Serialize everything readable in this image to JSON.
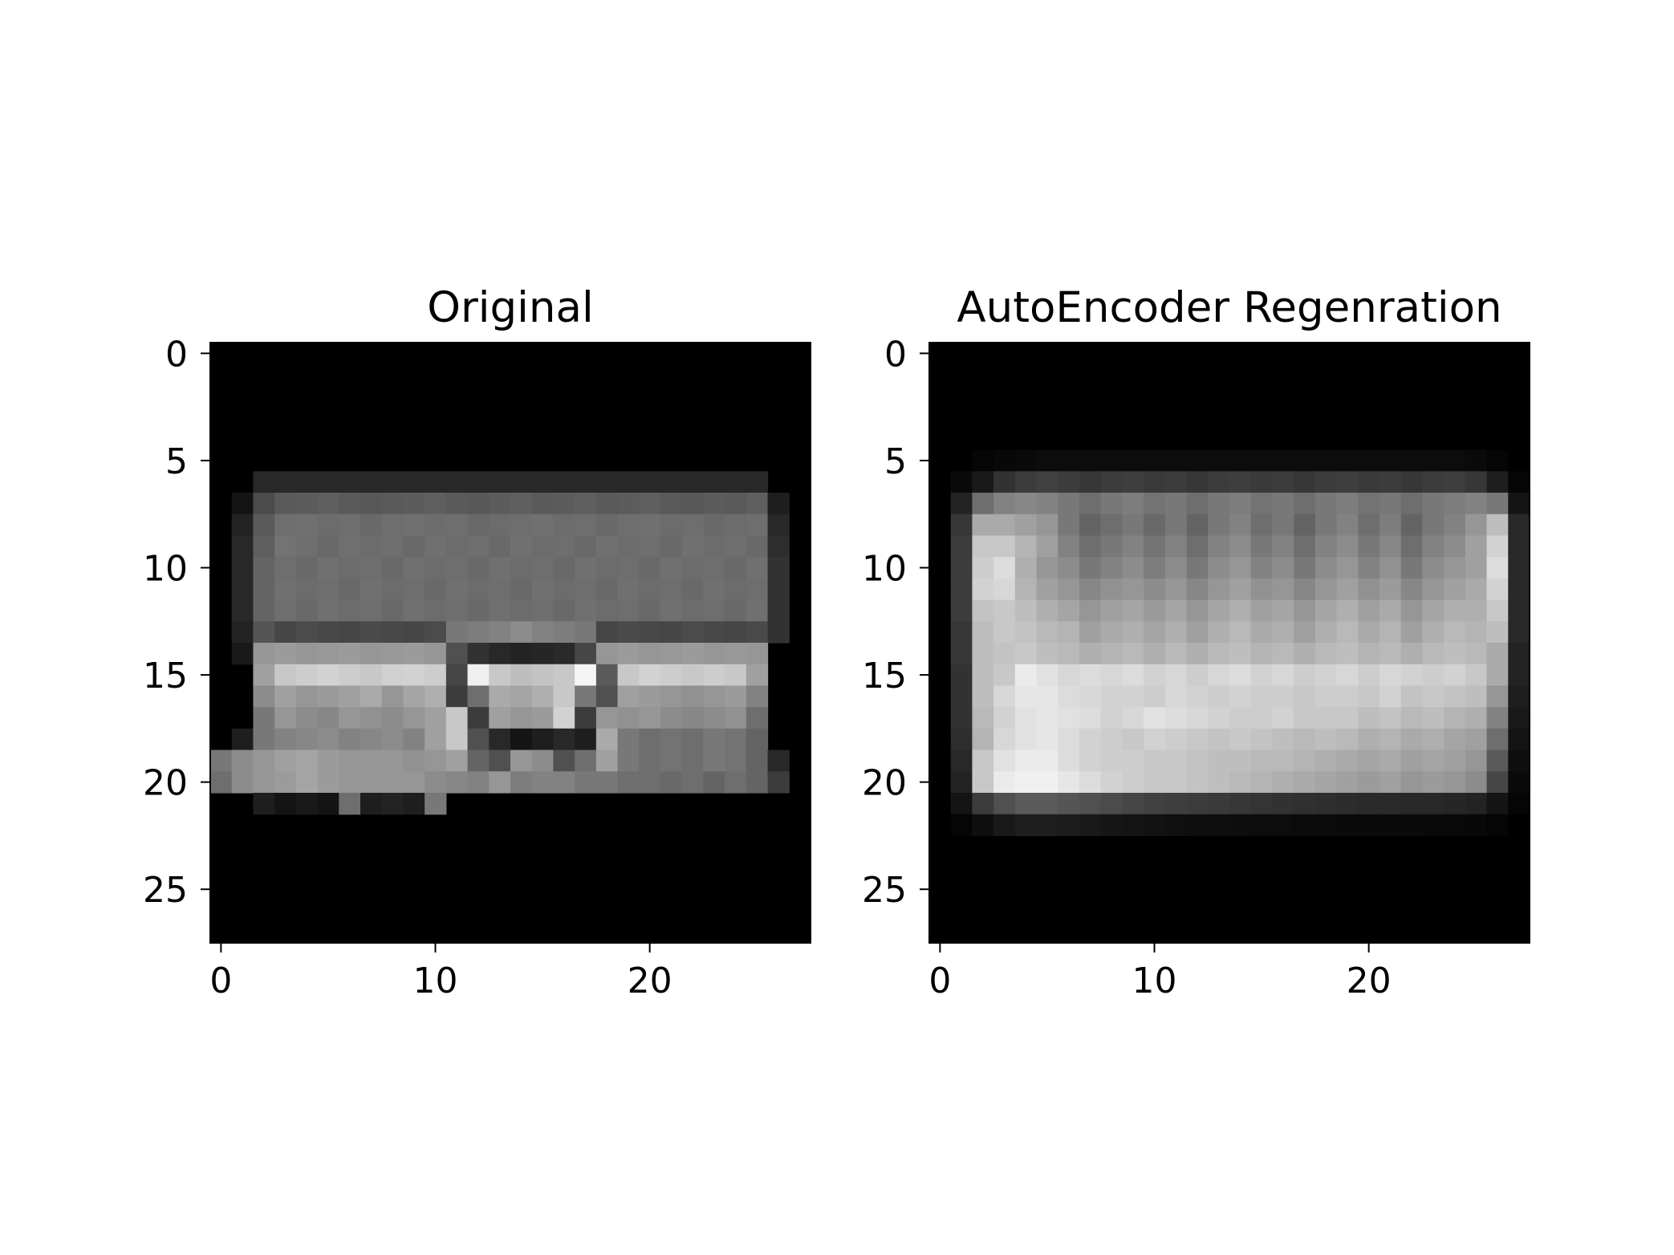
{
  "chart_data": [
    {
      "type": "heatmap",
      "title": "Original",
      "xlabel": "",
      "ylabel": "",
      "colormap": "gray",
      "xlim": [
        -0.5,
        27.5
      ],
      "ylim": [
        27.5,
        -0.5
      ],
      "xticks": [
        0,
        10,
        20
      ],
      "yticks": [
        0,
        5,
        10,
        15,
        20,
        25
      ],
      "xtick_labels": [
        "0",
        "10",
        "20"
      ],
      "ytick_labels": [
        "0",
        "5",
        "10",
        "15",
        "20",
        "25"
      ],
      "row_start": 6,
      "rows": [
        [
          0,
          0,
          40,
          40,
          40,
          40,
          40,
          40,
          40,
          40,
          40,
          40,
          40,
          40,
          40,
          40,
          40,
          40,
          40,
          40,
          40,
          40,
          40,
          40,
          40,
          40,
          0,
          0
        ],
        [
          0,
          20,
          75,
          90,
          92,
          95,
          90,
          88,
          90,
          92,
          95,
          90,
          88,
          92,
          95,
          90,
          92,
          95,
          90,
          92,
          95,
          90,
          88,
          92,
          90,
          95,
          30,
          0
        ],
        [
          0,
          35,
          90,
          110,
          112,
          108,
          110,
          105,
          110,
          112,
          108,
          110,
          105,
          108,
          110,
          112,
          108,
          110,
          105,
          110,
          112,
          108,
          110,
          105,
          108,
          110,
          40,
          0
        ],
        [
          0,
          40,
          95,
          115,
          110,
          105,
          112,
          108,
          110,
          105,
          112,
          108,
          110,
          105,
          112,
          108,
          110,
          105,
          112,
          108,
          110,
          105,
          112,
          108,
          110,
          105,
          45,
          0
        ],
        [
          0,
          40,
          100,
          110,
          105,
          112,
          108,
          110,
          105,
          112,
          108,
          110,
          105,
          112,
          108,
          110,
          105,
          112,
          108,
          110,
          105,
          112,
          108,
          110,
          105,
          112,
          50,
          0
        ],
        [
          0,
          40,
          100,
          112,
          108,
          110,
          105,
          112,
          108,
          110,
          105,
          112,
          108,
          110,
          105,
          112,
          108,
          110,
          105,
          112,
          108,
          110,
          105,
          112,
          108,
          110,
          50,
          0
        ],
        [
          0,
          40,
          100,
          110,
          105,
          112,
          108,
          110,
          105,
          112,
          108,
          110,
          105,
          112,
          108,
          110,
          105,
          112,
          108,
          110,
          105,
          112,
          108,
          110,
          105,
          112,
          50,
          0
        ],
        [
          0,
          35,
          85,
          70,
          75,
          72,
          70,
          74,
          72,
          70,
          75,
          120,
          125,
          130,
          140,
          130,
          125,
          120,
          70,
          74,
          72,
          70,
          75,
          72,
          70,
          74,
          50,
          0
        ],
        [
          0,
          25,
          150,
          155,
          150,
          152,
          155,
          150,
          152,
          155,
          150,
          80,
          50,
          40,
          35,
          38,
          42,
          70,
          150,
          155,
          150,
          152,
          155,
          150,
          152,
          150,
          0,
          0
        ],
        [
          0,
          0,
          160,
          200,
          205,
          210,
          205,
          200,
          208,
          210,
          205,
          70,
          240,
          200,
          190,
          195,
          200,
          245,
          90,
          200,
          210,
          205,
          200,
          205,
          200,
          160,
          0,
          0
        ],
        [
          0,
          0,
          140,
          160,
          150,
          155,
          160,
          170,
          150,
          165,
          175,
          60,
          110,
          170,
          165,
          175,
          200,
          120,
          80,
          160,
          155,
          150,
          145,
          150,
          155,
          130,
          0,
          0
        ],
        [
          0,
          0,
          120,
          150,
          140,
          135,
          150,
          145,
          140,
          150,
          160,
          200,
          60,
          160,
          150,
          155,
          210,
          60,
          150,
          145,
          150,
          140,
          135,
          140,
          145,
          110,
          0,
          0
        ],
        [
          0,
          30,
          120,
          130,
          135,
          140,
          130,
          135,
          140,
          130,
          160,
          200,
          80,
          40,
          20,
          30,
          40,
          30,
          170,
          120,
          110,
          115,
          110,
          120,
          115,
          100,
          0,
          0
        ],
        [
          120,
          140,
          150,
          160,
          165,
          155,
          150,
          150,
          150,
          145,
          150,
          160,
          100,
          80,
          150,
          140,
          80,
          110,
          160,
          120,
          110,
          115,
          110,
          120,
          115,
          100,
          40,
          0
        ],
        [
          110,
          140,
          150,
          155,
          165,
          155,
          150,
          150,
          150,
          150,
          140,
          135,
          130,
          150,
          125,
          130,
          130,
          120,
          120,
          110,
          110,
          105,
          110,
          100,
          110,
          100,
          60,
          0
        ],
        [
          0,
          0,
          30,
          20,
          25,
          20,
          110,
          30,
          35,
          30,
          120,
          0,
          0,
          0,
          0,
          0,
          0,
          0,
          0,
          0,
          0,
          0,
          0,
          0,
          0,
          0,
          0,
          0
        ]
      ]
    },
    {
      "type": "heatmap",
      "title": "AutoEncoder Regenration",
      "xlabel": "",
      "ylabel": "",
      "colormap": "gray",
      "xlim": [
        -0.5,
        27.5
      ],
      "ylim": [
        27.5,
        -0.5
      ],
      "xticks": [
        0,
        10,
        20
      ],
      "yticks": [
        0,
        5,
        10,
        15,
        20,
        25
      ],
      "xtick_labels": [
        "0",
        "10",
        "20"
      ],
      "ytick_labels": [
        "0",
        "5",
        "10",
        "15",
        "20",
        "25"
      ],
      "row_start": 5,
      "rows": [
        [
          0,
          0,
          5,
          8,
          10,
          12,
          12,
          12,
          12,
          12,
          12,
          12,
          12,
          12,
          12,
          12,
          12,
          12,
          12,
          12,
          12,
          12,
          12,
          12,
          12,
          10,
          5,
          0
        ],
        [
          0,
          10,
          25,
          50,
          60,
          65,
          60,
          55,
          60,
          62,
          58,
          60,
          55,
          60,
          62,
          58,
          60,
          55,
          60,
          62,
          58,
          60,
          55,
          60,
          62,
          55,
          30,
          5
        ],
        [
          0,
          35,
          110,
          130,
          135,
          130,
          120,
          110,
          120,
          125,
          115,
          120,
          110,
          120,
          125,
          115,
          120,
          110,
          120,
          125,
          115,
          120,
          110,
          120,
          125,
          130,
          120,
          20
        ],
        [
          0,
          55,
          170,
          170,
          160,
          150,
          120,
          100,
          110,
          120,
          105,
          120,
          100,
          120,
          130,
          110,
          120,
          100,
          120,
          130,
          110,
          125,
          100,
          120,
          130,
          150,
          190,
          40
        ],
        [
          0,
          60,
          200,
          200,
          180,
          160,
          130,
          110,
          120,
          130,
          115,
          130,
          110,
          130,
          140,
          120,
          130,
          110,
          130,
          140,
          120,
          135,
          110,
          130,
          140,
          160,
          210,
          40
        ],
        [
          0,
          60,
          205,
          220,
          175,
          150,
          140,
          120,
          130,
          140,
          125,
          140,
          120,
          140,
          150,
          130,
          140,
          120,
          140,
          150,
          130,
          145,
          120,
          140,
          150,
          160,
          220,
          40
        ],
        [
          0,
          60,
          210,
          215,
          180,
          160,
          150,
          135,
          145,
          150,
          140,
          150,
          135,
          150,
          160,
          145,
          150,
          135,
          150,
          160,
          145,
          155,
          135,
          150,
          160,
          170,
          210,
          40
        ],
        [
          0,
          60,
          195,
          200,
          190,
          175,
          165,
          150,
          160,
          165,
          155,
          165,
          150,
          165,
          175,
          160,
          165,
          150,
          165,
          175,
          160,
          170,
          150,
          165,
          175,
          175,
          200,
          40
        ],
        [
          0,
          55,
          190,
          200,
          195,
          185,
          180,
          160,
          170,
          175,
          165,
          175,
          160,
          175,
          185,
          170,
          175,
          160,
          175,
          185,
          170,
          180,
          160,
          175,
          185,
          180,
          190,
          40
        ],
        [
          0,
          55,
          190,
          195,
          200,
          190,
          185,
          175,
          180,
          185,
          175,
          185,
          175,
          185,
          190,
          180,
          185,
          175,
          185,
          190,
          180,
          185,
          175,
          185,
          190,
          185,
          170,
          35
        ],
        [
          0,
          50,
          190,
          200,
          235,
          225,
          215,
          220,
          215,
          220,
          210,
          215,
          205,
          215,
          220,
          210,
          215,
          205,
          210,
          215,
          205,
          215,
          210,
          205,
          210,
          200,
          170,
          35
        ],
        [
          0,
          50,
          190,
          215,
          230,
          230,
          220,
          215,
          210,
          210,
          205,
          215,
          210,
          205,
          210,
          205,
          205,
          200,
          205,
          205,
          200,
          210,
          195,
          200,
          195,
          190,
          150,
          30
        ],
        [
          0,
          50,
          185,
          210,
          225,
          230,
          225,
          220,
          210,
          215,
          225,
          220,
          215,
          210,
          205,
          205,
          210,
          200,
          200,
          200,
          190,
          195,
          185,
          190,
          180,
          175,
          130,
          25
        ],
        [
          0,
          45,
          180,
          215,
          225,
          230,
          220,
          210,
          205,
          200,
          210,
          205,
          200,
          195,
          200,
          195,
          190,
          185,
          190,
          185,
          175,
          180,
          170,
          175,
          165,
          160,
          110,
          20
        ],
        [
          0,
          40,
          200,
          225,
          235,
          235,
          220,
          210,
          205,
          205,
          200,
          200,
          195,
          190,
          190,
          185,
          185,
          180,
          175,
          170,
          165,
          170,
          160,
          165,
          160,
          150,
          90,
          15
        ],
        [
          0,
          35,
          200,
          235,
          240,
          240,
          230,
          220,
          210,
          205,
          200,
          200,
          195,
          190,
          185,
          180,
          175,
          170,
          165,
          160,
          155,
          160,
          150,
          155,
          150,
          140,
          70,
          10
        ],
        [
          0,
          20,
          60,
          80,
          90,
          90,
          85,
          80,
          75,
          70,
          65,
          62,
          60,
          58,
          55,
          52,
          50,
          48,
          46,
          44,
          42,
          42,
          40,
          40,
          38,
          35,
          20,
          5
        ],
        [
          0,
          5,
          15,
          25,
          30,
          30,
          28,
          25,
          22,
          20,
          18,
          16,
          15,
          14,
          13,
          12,
          12,
          11,
          11,
          10,
          10,
          10,
          10,
          9,
          9,
          8,
          5,
          0
        ]
      ]
    }
  ]
}
